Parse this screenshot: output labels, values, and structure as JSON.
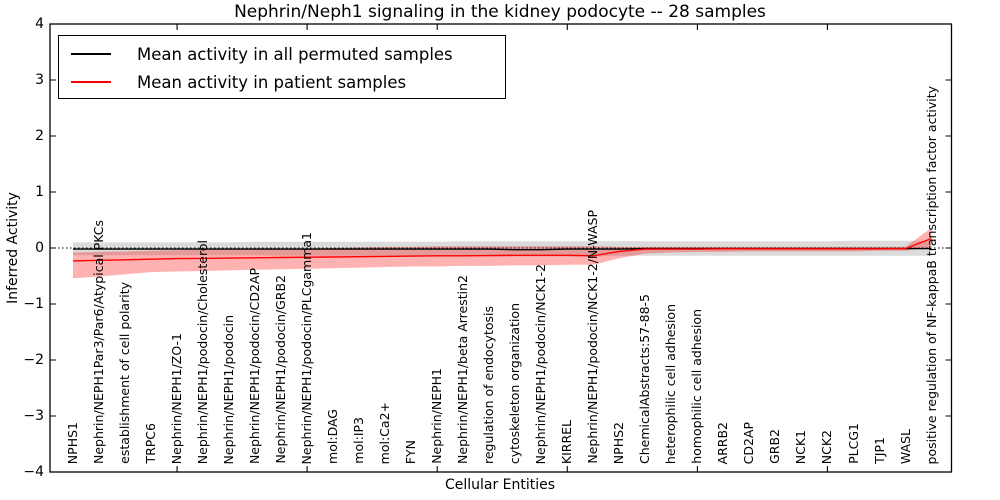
{
  "chart_data": {
    "type": "line",
    "title": "Nephrin/Neph1 signaling in the kidney podocyte -- 28 samples",
    "xlabel": "Cellular Entities",
    "ylabel": "Inferred Activity",
    "ylim": [
      -4,
      4
    ],
    "yticks": [
      4,
      3,
      2,
      1,
      0,
      -1,
      -2,
      -3,
      -4
    ],
    "x_major_ticks": [
      5,
      10,
      15,
      20,
      25,
      30
    ],
    "grid": false,
    "legend_position": "upper left",
    "zero_line": {
      "y": 0,
      "style": "dotted",
      "color": "#000000"
    },
    "categories": [
      "NPHS1",
      "Nephrin/NEPH1Par3/Par6/Atypical PKCs",
      "establishment of cell polarity",
      "TRPC6",
      "Nephrin/NEPH1/ZO-1",
      "Nephrin/NEPH1/podocin/Cholesterol",
      "Nephrin/NEPH1/podocin",
      "Nephrin/NEPH1/podocin/CD2AP",
      "Nephrin/NEPH1/podocin/GRB2",
      "Nephrin/NEPH1/podocin/PLCgamma1",
      "mol:DAG",
      "mol:IP3",
      "mol:Ca2+",
      "FYN",
      "Nephrin/NEPH1",
      "Nephrin/NEPH1/beta Arrestin2",
      "regulation of endocytosis",
      "cytoskeleton organization",
      "Nephrin/NEPH1/podocin/NCK1-2",
      "KIRREL",
      "Nephrin/NEPH1/podocin/NCK1-2/N-WASP",
      "NPHS2",
      "ChemicalAbstracts:57-88-5",
      "heterophilic cell adhesion",
      "homophilic cell adhesion",
      "ARRB2",
      "CD2AP",
      "GRB2",
      "NCK1",
      "NCK2",
      "PLCG1",
      "TJP1",
      "WASL",
      "positive regulation of NF-kappaB transcription factor activity"
    ],
    "series": [
      {
        "name": "Mean activity in all permuted samples",
        "color": "#000000",
        "band_color": "#7f7f7f",
        "band_opacity": 0.28,
        "values": [
          -0.02,
          -0.02,
          -0.02,
          -0.02,
          -0.02,
          -0.02,
          -0.02,
          -0.02,
          -0.02,
          -0.02,
          -0.02,
          -0.02,
          -0.02,
          -0.02,
          -0.02,
          -0.02,
          -0.02,
          -0.03,
          -0.03,
          -0.02,
          -0.02,
          -0.02,
          -0.01,
          -0.01,
          -0.01,
          -0.01,
          -0.01,
          -0.01,
          -0.01,
          -0.01,
          -0.01,
          -0.01,
          -0.01,
          -0.01
        ],
        "band_upper": [
          0.1,
          0.1,
          0.1,
          0.1,
          0.1,
          0.1,
          0.1,
          0.11,
          0.11,
          0.11,
          0.11,
          0.11,
          0.11,
          0.11,
          0.11,
          0.12,
          0.12,
          0.12,
          0.12,
          0.12,
          0.12,
          0.12,
          0.12,
          0.12,
          0.12,
          0.12,
          0.12,
          0.12,
          0.12,
          0.12,
          0.13,
          0.13,
          0.13,
          0.13
        ],
        "band_lower": [
          -0.13,
          -0.13,
          -0.13,
          -0.13,
          -0.13,
          -0.13,
          -0.13,
          -0.13,
          -0.14,
          -0.14,
          -0.14,
          -0.14,
          -0.14,
          -0.14,
          -0.14,
          -0.14,
          -0.15,
          -0.15,
          -0.15,
          -0.15,
          -0.15,
          -0.14,
          -0.14,
          -0.14,
          -0.14,
          -0.14,
          -0.14,
          -0.14,
          -0.14,
          -0.14,
          -0.14,
          -0.14,
          -0.14,
          -0.14
        ]
      },
      {
        "name": "Mean activity in patient samples",
        "color": "#ff0000",
        "band_color": "#ff0000",
        "band_opacity": 0.3,
        "values": [
          -0.23,
          -0.22,
          -0.21,
          -0.2,
          -0.19,
          -0.185,
          -0.18,
          -0.175,
          -0.17,
          -0.165,
          -0.16,
          -0.155,
          -0.15,
          -0.145,
          -0.14,
          -0.14,
          -0.135,
          -0.13,
          -0.13,
          -0.13,
          -0.14,
          -0.06,
          -0.02,
          -0.02,
          -0.02,
          -0.015,
          -0.015,
          -0.015,
          -0.015,
          -0.015,
          -0.015,
          -0.015,
          -0.01,
          0.17
        ],
        "band_upper": [
          -0.08,
          -0.07,
          -0.06,
          -0.05,
          -0.04,
          -0.03,
          -0.02,
          -0.02,
          -0.01,
          -0.01,
          0.0,
          0.01,
          0.02,
          0.02,
          0.03,
          0.03,
          0.03,
          0.03,
          0.03,
          0.03,
          0.03,
          0.02,
          0.02,
          0.02,
          0.02,
          0.02,
          0.02,
          0.02,
          0.02,
          0.02,
          0.02,
          0.02,
          0.02,
          0.36
        ],
        "band_lower": [
          -0.54,
          -0.51,
          -0.47,
          -0.43,
          -0.42,
          -0.41,
          -0.4,
          -0.39,
          -0.38,
          -0.37,
          -0.36,
          -0.35,
          -0.34,
          -0.33,
          -0.33,
          -0.32,
          -0.32,
          -0.31,
          -0.31,
          -0.3,
          -0.3,
          -0.18,
          -0.1,
          -0.08,
          -0.07,
          -0.07,
          -0.06,
          -0.06,
          -0.06,
          -0.06,
          -0.06,
          -0.05,
          -0.05,
          0.02
        ]
      }
    ]
  }
}
